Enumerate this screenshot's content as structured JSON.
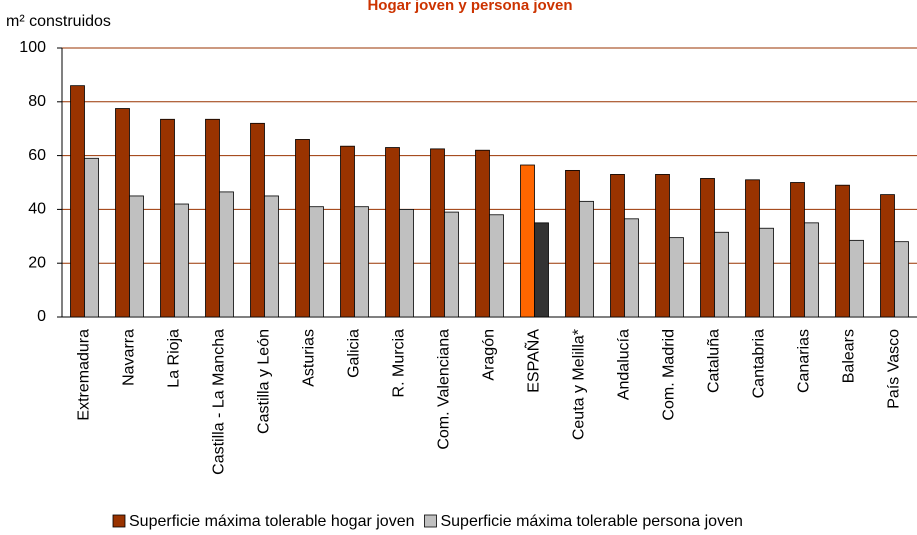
{
  "chart_data": {
    "type": "bar",
    "title": "Hogar joven y persona joven",
    "y_label": "m² construidos",
    "categories": [
      "Extremadura",
      "Navarra",
      "La Rioja",
      "Castilla - La Mancha",
      "Castilla y León",
      "Asturias",
      "Galicia",
      "R. Murcia",
      "Com. Valenciana",
      "Aragón",
      "ESPAÑA",
      "Ceuta y Melilla*",
      "Andalucía",
      "Com. Madrid",
      "Cataluña",
      "Cantabria",
      "Canarias",
      "Balears",
      "País Vasco"
    ],
    "series": [
      {
        "name": "Superficie máxima tolerable hogar joven",
        "color": "#993300",
        "highlight_color": "#ff6600",
        "values": [
          86,
          77.5,
          73.5,
          73.5,
          72,
          66,
          63.5,
          63,
          62.5,
          62,
          56.5,
          54.5,
          53,
          53,
          51.5,
          51,
          50,
          49,
          45.5
        ]
      },
      {
        "name": "Superficie máxima tolerable persona joven",
        "color": "#c0c0c0",
        "highlight_color": "#333333",
        "values": [
          59,
          45,
          42,
          46.5,
          45,
          41,
          41,
          40,
          39,
          38,
          35,
          43,
          36.5,
          29.5,
          31.5,
          33,
          35,
          28.5,
          28
        ]
      }
    ],
    "highlight_category": "ESPAÑA",
    "ylim": [
      0,
      100
    ],
    "yticks": [
      0,
      20,
      40,
      60,
      80,
      100
    ],
    "grid": true
  }
}
